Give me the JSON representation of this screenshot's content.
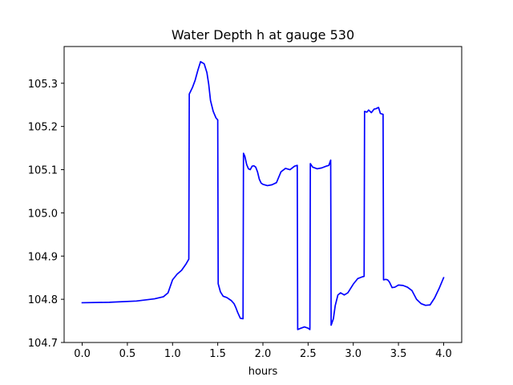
{
  "chart_data": {
    "type": "line",
    "title": "Water Depth h at gauge 530",
    "xlabel": "hours",
    "ylabel": "",
    "xlim": [
      -0.2,
      4.2
    ],
    "ylim": [
      104.7,
      105.385
    ],
    "grid": false,
    "xticks": [
      0.0,
      0.5,
      1.0,
      1.5,
      2.0,
      2.5,
      3.0,
      3.5,
      4.0
    ],
    "xtick_labels": [
      "0.0",
      "0.5",
      "1.0",
      "1.5",
      "2.0",
      "2.5",
      "3.0",
      "3.5",
      "4.0"
    ],
    "yticks": [
      104.7,
      104.8,
      104.9,
      105.0,
      105.1,
      105.2,
      105.3
    ],
    "ytick_labels": [
      "104.7",
      "104.8",
      "104.9",
      "105.0",
      "105.1",
      "105.2",
      "105.3"
    ],
    "series": [
      {
        "color": "#0000ff",
        "x": [
          0.0,
          0.3,
          0.6,
          0.8,
          0.9,
          0.95,
          1.0,
          1.05,
          1.1,
          1.15,
          1.18,
          1.185,
          1.22,
          1.25,
          1.28,
          1.31,
          1.35,
          1.38,
          1.4,
          1.42,
          1.45,
          1.48,
          1.5,
          1.505,
          1.53,
          1.56,
          1.6,
          1.65,
          1.68,
          1.7,
          1.72,
          1.75,
          1.78,
          1.785,
          1.8,
          1.82,
          1.84,
          1.86,
          1.88,
          1.9,
          1.92,
          1.94,
          1.96,
          1.98,
          2.0,
          2.05,
          2.1,
          2.15,
          2.2,
          2.25,
          2.3,
          2.35,
          2.38,
          2.385,
          2.42,
          2.46,
          2.5,
          2.52,
          2.525,
          2.55,
          2.6,
          2.65,
          2.7,
          2.73,
          2.75,
          2.755,
          2.78,
          2.8,
          2.83,
          2.86,
          2.9,
          2.94,
          3.0,
          3.05,
          3.1,
          3.12,
          3.125,
          3.15,
          3.17,
          3.2,
          3.23,
          3.25,
          3.28,
          3.3,
          3.33,
          3.335,
          3.36,
          3.38,
          3.4,
          3.43,
          3.46,
          3.5,
          3.55,
          3.6,
          3.65,
          3.7,
          3.75,
          3.8,
          3.85,
          3.9,
          3.95,
          4.0
        ],
        "y": [
          104.792,
          104.793,
          104.796,
          104.801,
          104.806,
          104.815,
          104.845,
          104.858,
          104.867,
          104.882,
          104.893,
          105.275,
          105.29,
          105.307,
          105.33,
          105.35,
          105.345,
          105.325,
          105.298,
          105.26,
          105.235,
          105.22,
          105.215,
          104.836,
          104.817,
          104.807,
          104.804,
          104.797,
          104.79,
          104.781,
          104.77,
          104.756,
          104.755,
          105.138,
          105.131,
          105.112,
          105.102,
          105.1,
          105.108,
          105.109,
          105.106,
          105.095,
          105.078,
          105.069,
          105.066,
          105.063,
          105.065,
          105.07,
          105.095,
          105.103,
          105.1,
          105.108,
          105.11,
          104.73,
          104.733,
          104.736,
          104.733,
          104.73,
          105.114,
          105.106,
          105.102,
          105.104,
          105.108,
          105.11,
          105.122,
          104.74,
          104.755,
          104.785,
          104.81,
          104.815,
          104.81,
          104.815,
          104.835,
          104.848,
          104.852,
          104.853,
          105.235,
          105.233,
          105.238,
          105.232,
          105.24,
          105.241,
          105.244,
          105.23,
          105.228,
          104.845,
          104.846,
          104.845,
          104.84,
          104.827,
          104.828,
          104.833,
          104.832,
          104.828,
          104.82,
          104.8,
          104.79,
          104.786,
          104.787,
          104.803,
          104.825,
          104.85
        ]
      }
    ]
  }
}
